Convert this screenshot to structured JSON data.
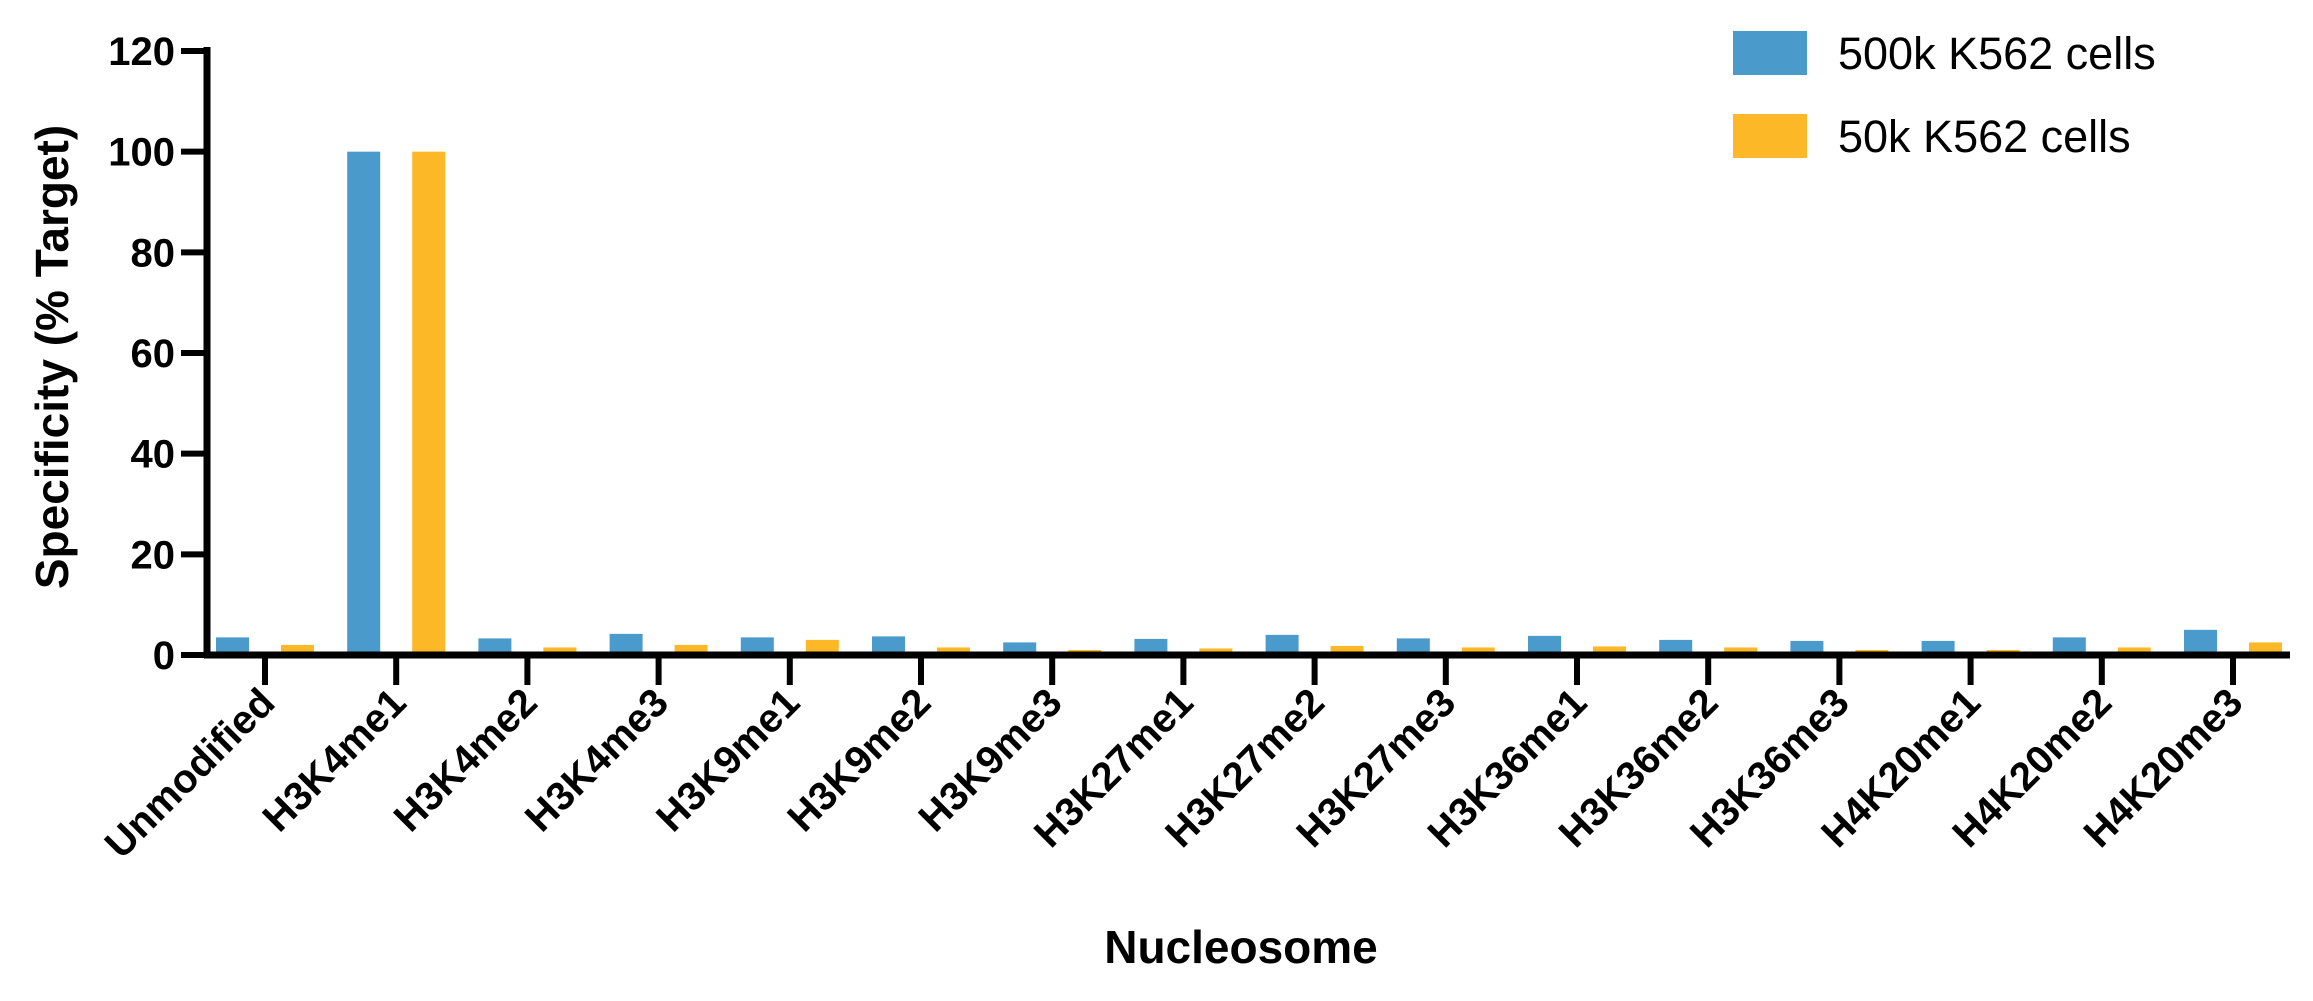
{
  "chart_data": {
    "type": "bar",
    "xlabel": "Nucleosome",
    "ylabel": "Specificity (% Target)",
    "ylim": [
      0,
      120
    ],
    "yticks": [
      0,
      20,
      40,
      60,
      80,
      100,
      120
    ],
    "grid": false,
    "legend_position": "top-right",
    "categories": [
      "Unmodified",
      "H3K4me1",
      "H3K4me2",
      "H3K4me3",
      "H3K9me1",
      "H3K9me2",
      "H3K9me3",
      "H3K27me1",
      "H3K27me2",
      "H3K27me3",
      "H3K36me1",
      "H3K36me2",
      "H3K36me3",
      "H4K20me1",
      "H4K20me2",
      "H4K20me3"
    ],
    "series": [
      {
        "name": "500k K562 cells",
        "color": "#4A9ACC",
        "values": [
          3.5,
          100,
          3.3,
          4.2,
          3.5,
          3.7,
          2.5,
          3.2,
          4.0,
          3.3,
          3.8,
          3.0,
          2.8,
          2.8,
          3.5,
          5.0
        ]
      },
      {
        "name": "50k K562 cells",
        "color": "#FDB827",
        "values": [
          2.0,
          100,
          1.5,
          2.0,
          3.0,
          1.5,
          1.0,
          1.3,
          1.8,
          1.5,
          1.7,
          1.5,
          1.0,
          1.0,
          1.5,
          2.5
        ]
      }
    ]
  }
}
